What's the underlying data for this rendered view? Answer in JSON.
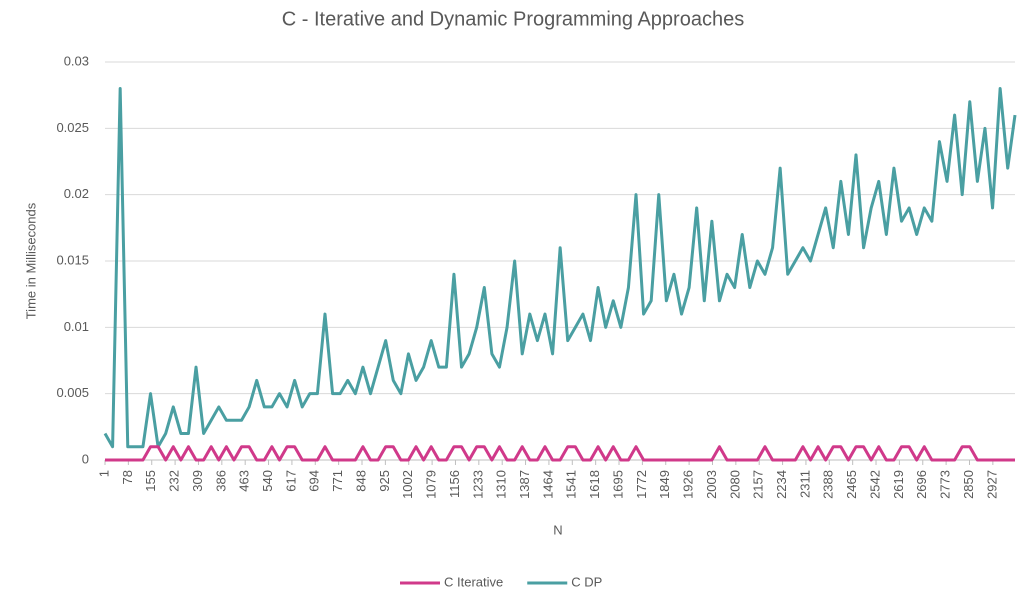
{
  "chart_data": {
    "type": "line",
    "title": "C - Iterative and Dynamic Programming Approaches",
    "x_label": "N",
    "y_label": "Time in Milliseconds",
    "x": [
      1,
      26,
      51,
      76,
      101,
      126,
      151,
      176,
      201,
      226,
      251,
      276,
      301,
      326,
      351,
      376,
      401,
      426,
      451,
      476,
      501,
      526,
      551,
      576,
      601,
      626,
      651,
      676,
      701,
      726,
      751,
      776,
      801,
      826,
      851,
      876,
      901,
      926,
      951,
      976,
      1001,
      1026,
      1051,
      1076,
      1101,
      1126,
      1151,
      1176,
      1201,
      1226,
      1251,
      1276,
      1301,
      1326,
      1351,
      1376,
      1401,
      1426,
      1451,
      1476,
      1501,
      1526,
      1551,
      1576,
      1601,
      1626,
      1651,
      1676,
      1701,
      1726,
      1751,
      1776,
      1801,
      1826,
      1851,
      1876,
      1901,
      1926,
      1951,
      1976,
      2001,
      2026,
      2051,
      2076,
      2101,
      2126,
      2151,
      2176,
      2201,
      2226,
      2251,
      2276,
      2301,
      2326,
      2351,
      2376,
      2401,
      2426,
      2451,
      2476,
      2501,
      2526,
      2551,
      2576,
      2601,
      2626,
      2651,
      2676,
      2701,
      2726,
      2751,
      2776,
      2801,
      2826,
      2851,
      2876,
      2901,
      2926,
      2951,
      2976,
      3000
    ],
    "series": [
      {
        "name": "C Iterative",
        "color": "#d0398a",
        "values": [
          0,
          0,
          0,
          0,
          0,
          0,
          0.001,
          0.001,
          0,
          0.001,
          0,
          0.001,
          0,
          0,
          0.001,
          0,
          0.001,
          0,
          0.001,
          0.001,
          0,
          0,
          0.001,
          0,
          0.001,
          0.001,
          0,
          0,
          0,
          0.001,
          0,
          0,
          0,
          0,
          0.001,
          0,
          0,
          0.001,
          0.001,
          0,
          0,
          0.001,
          0,
          0.001,
          0,
          0,
          0.001,
          0.001,
          0,
          0.001,
          0.001,
          0,
          0.001,
          0,
          0,
          0.001,
          0,
          0,
          0.001,
          0,
          0,
          0.001,
          0.001,
          0,
          0,
          0.001,
          0,
          0.001,
          0,
          0,
          0.001,
          0,
          0,
          0,
          0,
          0,
          0,
          0,
          0,
          0,
          0,
          0.001,
          0,
          0,
          0,
          0,
          0,
          0.001,
          0,
          0,
          0,
          0,
          0.001,
          0,
          0.001,
          0,
          0.001,
          0.001,
          0,
          0.001,
          0.001,
          0,
          0.001,
          0,
          0,
          0.001,
          0.001,
          0,
          0.001,
          0,
          0,
          0,
          0,
          0.001,
          0.001,
          0,
          0,
          0,
          0,
          0,
          0
        ]
      },
      {
        "name": "C DP",
        "color": "#4a9fa2",
        "values": [
          0.002,
          0.001,
          0.028,
          0.001,
          0.001,
          0.001,
          0.005,
          0.001,
          0.002,
          0.004,
          0.002,
          0.002,
          0.007,
          0.002,
          0.003,
          0.004,
          0.003,
          0.003,
          0.003,
          0.004,
          0.006,
          0.004,
          0.004,
          0.005,
          0.004,
          0.006,
          0.004,
          0.005,
          0.005,
          0.011,
          0.005,
          0.005,
          0.006,
          0.005,
          0.007,
          0.005,
          0.007,
          0.009,
          0.006,
          0.005,
          0.008,
          0.006,
          0.007,
          0.009,
          0.007,
          0.007,
          0.014,
          0.007,
          0.008,
          0.01,
          0.013,
          0.008,
          0.007,
          0.01,
          0.015,
          0.008,
          0.011,
          0.009,
          0.011,
          0.008,
          0.016,
          0.009,
          0.01,
          0.011,
          0.009,
          0.013,
          0.01,
          0.012,
          0.01,
          0.013,
          0.02,
          0.011,
          0.012,
          0.02,
          0.012,
          0.014,
          0.011,
          0.013,
          0.019,
          0.012,
          0.018,
          0.012,
          0.014,
          0.013,
          0.017,
          0.013,
          0.015,
          0.014,
          0.016,
          0.022,
          0.014,
          0.015,
          0.016,
          0.015,
          0.017,
          0.019,
          0.016,
          0.021,
          0.017,
          0.023,
          0.016,
          0.019,
          0.021,
          0.017,
          0.022,
          0.018,
          0.019,
          0.017,
          0.019,
          0.018,
          0.024,
          0.021,
          0.026,
          0.02,
          0.027,
          0.021,
          0.025,
          0.019,
          0.028,
          0.022,
          0.026
        ]
      }
    ],
    "xlim": [
      1,
      3000
    ],
    "xticks": [
      1,
      78,
      155,
      232,
      309,
      386,
      463,
      540,
      617,
      694,
      771,
      848,
      925,
      1002,
      1079,
      1156,
      1233,
      1310,
      1387,
      1464,
      1541,
      1618,
      1695,
      1772,
      1849,
      1926,
      2003,
      2080,
      2157,
      2234,
      2311,
      2388,
      2465,
      2542,
      2619,
      2696,
      2773,
      2850,
      2927
    ],
    "ylim": [
      0,
      0.03
    ],
    "yticks": [
      0,
      0.005,
      0.01,
      0.015,
      0.02,
      0.025,
      0.03
    ],
    "grid": true,
    "legend": "bottom"
  }
}
